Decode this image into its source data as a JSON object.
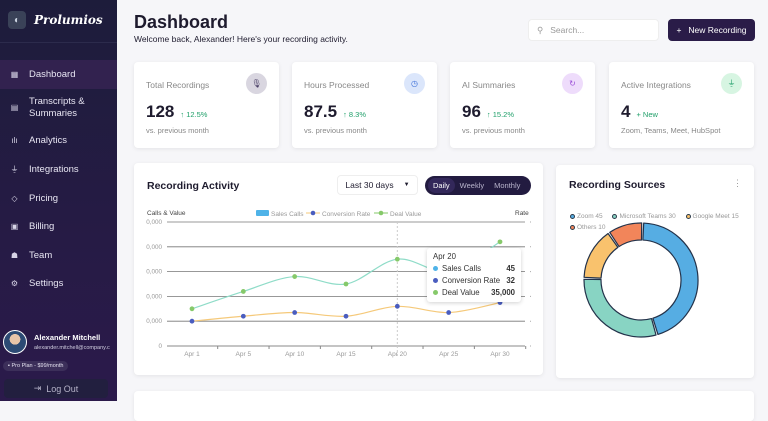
{
  "sidebar": {
    "brand": "Prolumios",
    "items": [
      {
        "label": "Dashboard",
        "icon": "grid-icon"
      },
      {
        "label": "Transcripts &",
        "label2": "Summaries",
        "icon": "document-icon"
      },
      {
        "label": "Analytics",
        "icon": "bar-chart-icon"
      },
      {
        "label": "Integrations",
        "icon": "plug-icon"
      },
      {
        "label": "Pricing",
        "icon": "tag-icon"
      },
      {
        "label": "Billing",
        "icon": "invoice-icon"
      },
      {
        "label": "Team",
        "icon": "users-icon"
      },
      {
        "label": "Settings",
        "icon": "gear-icon"
      }
    ],
    "user": {
      "name": "Alexander Mitchell",
      "email": "alexander.mitchell@company.c",
      "plan": "Pro Plan - $99/month"
    },
    "logout": "Log Out"
  },
  "header": {
    "title": "Dashboard",
    "subtitle": "Welcome back, Alexander! Here's your recording activity.",
    "search_placeholder": "Search...",
    "new_button": "New Recording"
  },
  "stats": [
    {
      "label": "Total Recordings",
      "value": "128",
      "change": "↑ 12.5%",
      "sub": "vs. previous month",
      "icon": "microphone-icon",
      "color": "#d9d6e0"
    },
    {
      "label": "Hours Processed",
      "value": "87.5",
      "change": "↑ 8.3%",
      "sub": "vs. previous month",
      "icon": "clock-icon",
      "color": "#dbe6fb"
    },
    {
      "label": "AI Summaries",
      "value": "96",
      "change": "↑ 15.2%",
      "sub": "vs. previous month",
      "icon": "refresh-icon",
      "color": "#eedcfb"
    },
    {
      "label": "Active Integrations",
      "value": "4",
      "change": "+ New",
      "sub": "Zoom, Teams, Meet, HubSpot",
      "icon": "plug-icon",
      "color": "#d7f5e2"
    }
  ],
  "activity": {
    "title": "Recording Activity",
    "range": "Last 30 days",
    "toggle": [
      "Daily",
      "Weekly",
      "Monthly"
    ],
    "active": "Daily",
    "tooltip": {
      "date": "Apr 20",
      "rows": [
        {
          "label": "Sales Calls",
          "value": "45",
          "color": "#4fb3e8"
        },
        {
          "label": "Conversion Rate",
          "value": "32",
          "color": "#4a5dbf"
        },
        {
          "label": "Deal Value",
          "value": "35,000",
          "color": "#86c96a"
        }
      ]
    }
  },
  "chart_data": [
    {
      "type": "line",
      "ylabel": "Calls & Value",
      "y2label": "Rate",
      "categories": [
        "Apr 1",
        "Apr 5",
        "Apr 10",
        "Apr 15",
        "Apr 20",
        "Apr 25",
        "Apr 30"
      ],
      "yticks": [
        "0",
        "0,000",
        "0,000",
        "0,000",
        "0,000",
        "0,000"
      ],
      "ylim": [
        0,
        50000
      ],
      "y2lim": [
        0,
        100
      ],
      "legend": [
        "Sales Calls",
        "Conversion Rate",
        "Deal Value"
      ],
      "series": [
        {
          "name": "Deal Value",
          "axis": "left",
          "values": [
            15000,
            22000,
            28000,
            25000,
            35000,
            30000,
            42000
          ],
          "line_color": "#8fdcc8",
          "point_color": "#86c96a"
        },
        {
          "name": "Conversion Rate",
          "axis": "right",
          "values": [
            20,
            24,
            27,
            24,
            32,
            27,
            35
          ],
          "line_color": "#f5c97a",
          "point_color": "#4a5dbf"
        }
      ],
      "highlight": "Apr 20",
      "grid": true
    },
    {
      "type": "pie",
      "title": "Recording Sources",
      "categories": [
        "Zoom",
        "Microsoft Teams",
        "Google Meet",
        "Others"
      ],
      "values": [
        45,
        30,
        15,
        10
      ],
      "labels": [
        "Zoom 45",
        "Microsoft Teams 30",
        "Google Meet 15",
        "Others 10"
      ],
      "colors": [
        "#56ade3",
        "#88d4c3",
        "#f9c26d",
        "#f2855a"
      ],
      "legend": "top"
    }
  ]
}
